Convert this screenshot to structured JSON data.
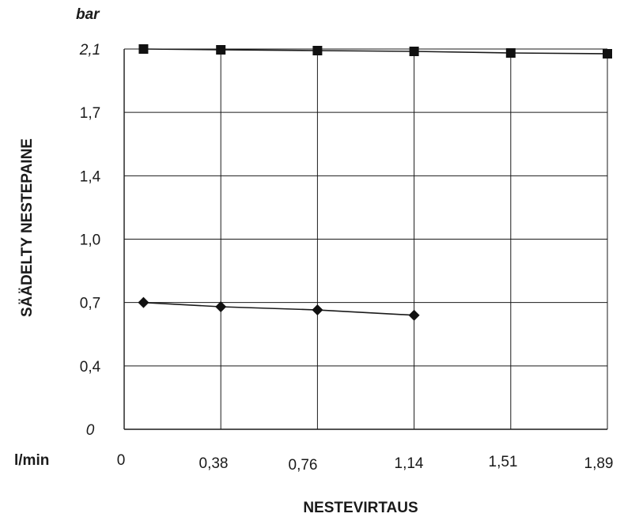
{
  "chart_data": {
    "type": "line",
    "y_unit": "bar",
    "x_unit": "l/min",
    "ylabel": "SÄÄDELTY NESTEPAINE",
    "xlabel": "NESTEVIRTAUS",
    "x_tick_labels": [
      "0",
      "0,38",
      "0,76",
      "1,14",
      "1,51",
      "1,89"
    ],
    "y_tick_labels": [
      "0",
      "0,4",
      "0,7",
      "1,0",
      "1,4",
      "1,7",
      "2,1"
    ],
    "grid": true,
    "series": [
      {
        "marker": "square",
        "points": [
          {
            "x": 0.076,
            "y": 2.1
          },
          {
            "x": 0.38,
            "y": 2.095
          },
          {
            "x": 0.76,
            "y": 2.09
          },
          {
            "x": 1.14,
            "y": 2.085
          },
          {
            "x": 1.51,
            "y": 2.075
          },
          {
            "x": 1.89,
            "y": 2.07
          }
        ]
      },
      {
        "marker": "diamond",
        "points": [
          {
            "x": 0.076,
            "y": 0.7
          },
          {
            "x": 0.38,
            "y": 0.68
          },
          {
            "x": 0.76,
            "y": 0.665
          },
          {
            "x": 1.14,
            "y": 0.64
          }
        ]
      }
    ]
  }
}
